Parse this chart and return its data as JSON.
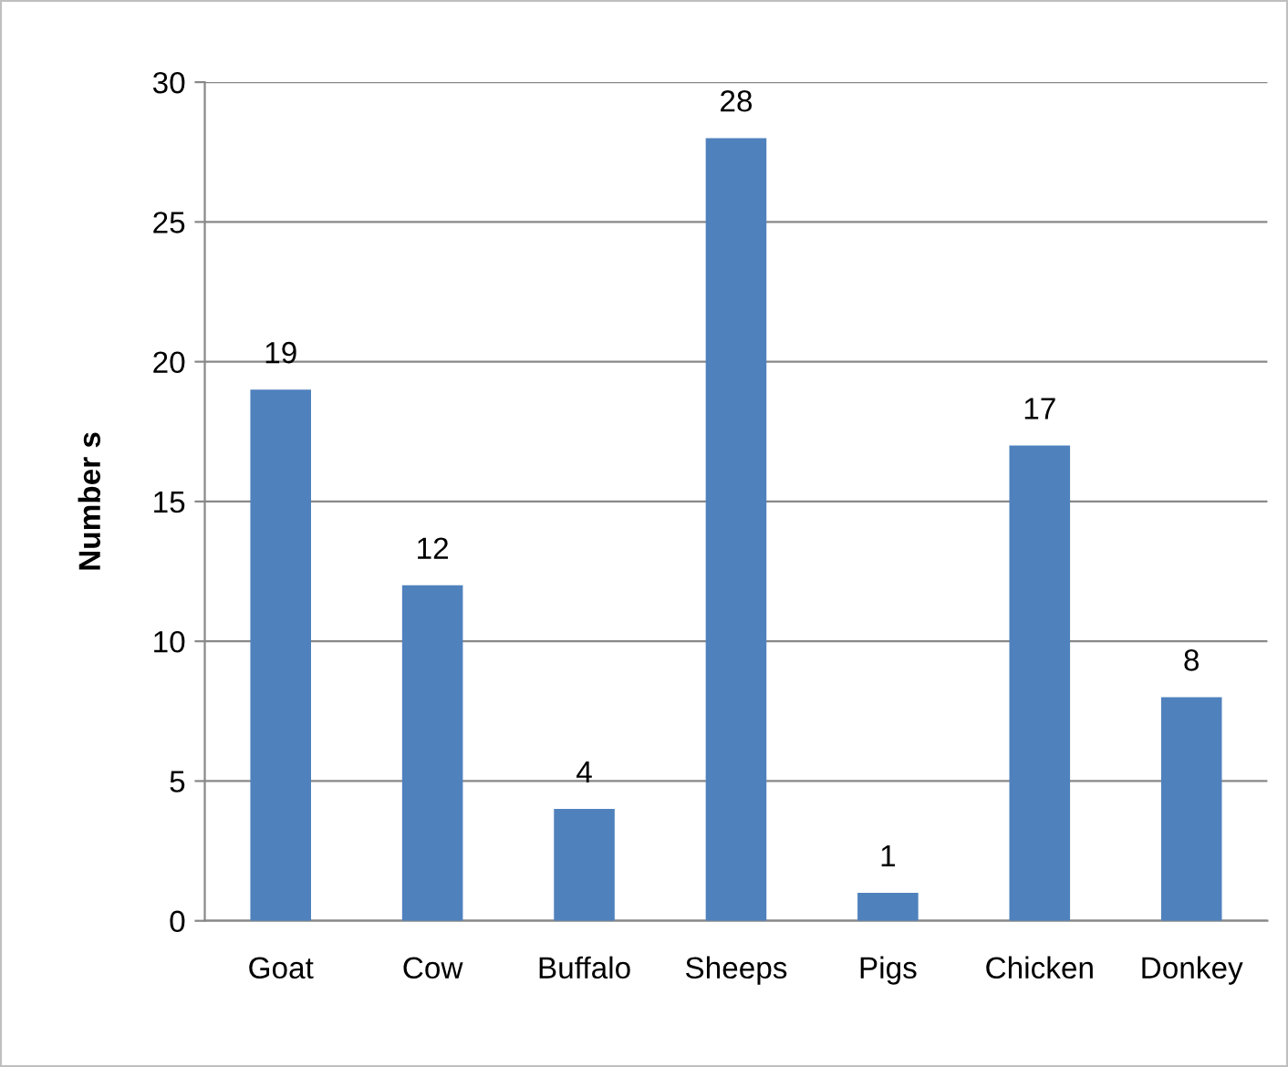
{
  "chart_data": {
    "type": "bar",
    "ylabel": "Number s",
    "categories": [
      "Goat",
      "Cow",
      "Buffalo",
      "Sheeps",
      "Pigs",
      "Chicken",
      "Donkey"
    ],
    "values": [
      19,
      12,
      4,
      28,
      1,
      17,
      8
    ],
    "color": "#4f81bd",
    "ylim": [
      0,
      30
    ],
    "yticks": [
      0,
      5,
      10,
      15,
      20,
      25,
      30
    ],
    "grid": "y",
    "data_labels": true,
    "legend": false
  }
}
